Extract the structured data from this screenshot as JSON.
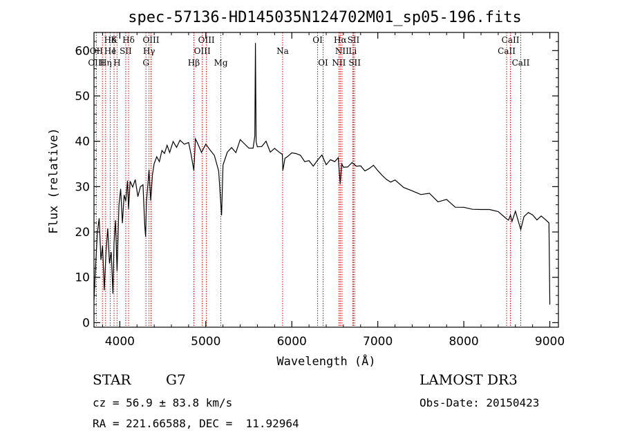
{
  "chart_data": {
    "type": "line",
    "title": "spec-57136-HD145035N124702M01_sp05-196.fits",
    "xlabel": "Wavelength (Å)",
    "ylabel": "Flux (relative)",
    "xlim": [
      3700,
      9100
    ],
    "ylim": [
      -1,
      64
    ],
    "xticks": [
      4000,
      5000,
      6000,
      7000,
      8000,
      9000
    ],
    "yticks": [
      0,
      10,
      20,
      30,
      40,
      50,
      60
    ],
    "spectrum": {
      "x": [
        3700,
        3720,
        3740,
        3760,
        3780,
        3800,
        3820,
        3840,
        3860,
        3880,
        3900,
        3920,
        3933,
        3950,
        3968,
        3990,
        4010,
        4030,
        4050,
        4070,
        4090,
        4102,
        4120,
        4150,
        4180,
        4210,
        4240,
        4270,
        4290,
        4300,
        4310,
        4330,
        4340,
        4360,
        4380,
        4400,
        4430,
        4460,
        4490,
        4520,
        4550,
        4580,
        4620,
        4660,
        4700,
        4750,
        4800,
        4830,
        4861,
        4880,
        4900,
        4950,
        5000,
        5050,
        5100,
        5150,
        5175,
        5183,
        5200,
        5250,
        5300,
        5350,
        5400,
        5450,
        5500,
        5550,
        5570,
        5577,
        5585,
        5600,
        5650,
        5700,
        5750,
        5800,
        5850,
        5890,
        5896,
        5920,
        5950,
        6000,
        6050,
        6100,
        6150,
        6200,
        6250,
        6300,
        6350,
        6400,
        6450,
        6500,
        6540,
        6563,
        6580,
        6600,
        6650,
        6700,
        6750,
        6800,
        6850,
        6900,
        6950,
        7000,
        7050,
        7100,
        7150,
        7200,
        7300,
        7400,
        7500,
        7600,
        7700,
        7800,
        7900,
        8000,
        8100,
        8200,
        8300,
        8400,
        8498,
        8520,
        8542,
        8560,
        8600,
        8662,
        8700,
        8750,
        8800,
        8850,
        8900,
        8950,
        8990,
        9000
      ],
      "y": [
        5,
        13,
        20,
        23,
        14,
        17,
        7,
        16,
        21,
        13,
        15,
        6,
        18,
        22,
        11,
        26,
        29,
        22,
        28,
        27,
        31,
        25,
        31,
        30,
        32,
        28,
        30,
        31,
        22,
        19,
        26,
        31,
        34,
        27,
        33,
        35,
        36,
        35,
        38,
        37,
        39,
        37,
        40,
        39,
        40,
        39,
        40,
        37,
        34,
        41,
        40,
        38,
        39,
        38,
        37,
        33,
        26,
        24,
        35,
        38,
        39,
        38,
        40,
        40,
        39,
        39,
        41,
        62,
        40,
        39,
        39,
        40,
        38,
        39,
        38,
        37,
        34,
        36,
        37,
        38,
        37,
        37,
        36,
        36,
        35,
        36,
        37,
        35,
        36,
        35,
        36,
        31,
        35,
        34,
        34,
        35,
        34,
        35,
        34,
        34,
        35,
        33,
        33,
        32,
        31,
        31,
        30,
        29,
        28,
        28,
        27,
        27,
        26,
        26,
        25,
        25,
        25,
        24,
        23,
        22,
        24,
        22,
        24,
        21,
        24,
        24,
        24,
        23,
        23,
        23,
        22,
        4
      ]
    },
    "line_labels": [
      {
        "text": "Hδ",
        "x": 3889,
        "row": 1
      },
      {
        "text": "K",
        "x": 3933,
        "row": 1
      },
      {
        "text": "Hδ",
        "x": 4102,
        "row": 1
      },
      {
        "text": "OIII",
        "x": 4363,
        "row": 1
      },
      {
        "text": "OIII",
        "x": 5007,
        "row": 1
      },
      {
        "text": "OI",
        "x": 6300,
        "row": 1
      },
      {
        "text": "Hα",
        "x": 6563,
        "row": 1
      },
      {
        "text": "SII",
        "x": 6717,
        "row": 1
      },
      {
        "text": "CaII",
        "x": 8542,
        "row": 1
      },
      {
        "text": "OII",
        "x": 3727,
        "row": 2
      },
      {
        "text": "He",
        "x": 3889,
        "row": 2
      },
      {
        "text": "I",
        "x": 3933,
        "row": 2
      },
      {
        "text": "SII",
        "x": 4069,
        "row": 2
      },
      {
        "text": "Hγ",
        "x": 4340,
        "row": 2
      },
      {
        "text": "OIII",
        "x": 4959,
        "row": 2
      },
      {
        "text": "Na",
        "x": 5893,
        "row": 2
      },
      {
        "text": "NII",
        "x": 6584,
        "row": 2
      },
      {
        "text": "Li",
        "x": 6708,
        "row": 2
      },
      {
        "text": "CaII",
        "x": 8498,
        "row": 2
      },
      {
        "text": "OIII",
        "x": 3727,
        "row": 3
      },
      {
        "text": "Hη",
        "x": 3835,
        "row": 3
      },
      {
        "text": "H",
        "x": 3968,
        "row": 3
      },
      {
        "text": "G",
        "x": 4304,
        "row": 3
      },
      {
        "text": "Hβ",
        "x": 4861,
        "row": 3
      },
      {
        "text": "Mg",
        "x": 5175,
        "row": 3
      },
      {
        "text": "OI",
        "x": 6364,
        "row": 3
      },
      {
        "text": "NII",
        "x": 6548,
        "row": 3
      },
      {
        "text": "SII",
        "x": 6731,
        "row": 3
      },
      {
        "text": "CaII",
        "x": 8662,
        "row": 3
      }
    ],
    "line_markers": [
      3727,
      3798,
      3835,
      3889,
      3933,
      3968,
      4069,
      4102,
      4304,
      4340,
      4363,
      4861,
      4959,
      5007,
      5175,
      5893,
      6300,
      6364,
      6548,
      6563,
      6584,
      6708,
      6717,
      6731,
      8498,
      8542,
      8662
    ]
  },
  "footer": {
    "object_class": "STAR",
    "subclass": "G7",
    "survey": "LAMOST DR3",
    "cz": "cz = 56.9 ± 83.8 km/s",
    "obs_date": "Obs-Date: 20150423",
    "coords": "RA = 221.66588, DEC =  11.92964"
  },
  "colors": {
    "marker": "#cc0000",
    "spectrum": "#000000"
  }
}
